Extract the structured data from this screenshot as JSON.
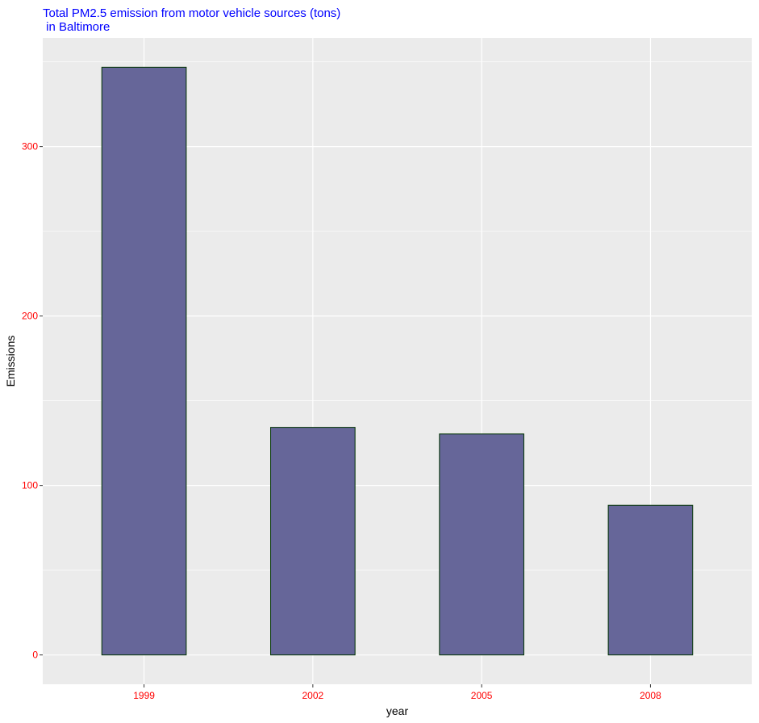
{
  "chart_data": {
    "type": "bar",
    "title_lines": [
      "Total PM2.5 emission from motor vehicle sources (tons)",
      " in Baltimore"
    ],
    "xlabel": "year",
    "ylabel": "Emissions",
    "categories": [
      "1999",
      "2002",
      "2005",
      "2008"
    ],
    "values": [
      346.8,
      134.3,
      130.4,
      88.3
    ],
    "y_ticks": [
      0,
      100,
      200,
      300
    ],
    "ylim": [
      -17.3,
      364.1
    ],
    "grid": true,
    "legend": "none",
    "colors": {
      "panel_background": "#ebebeb",
      "grid_major": "#ffffff",
      "bar_fill": "#666699",
      "bar_outline": "#003300",
      "title": "#0000ff",
      "tick_labels": "#ff0000",
      "axis_titles": "#000000",
      "ticks": "#333333"
    }
  }
}
